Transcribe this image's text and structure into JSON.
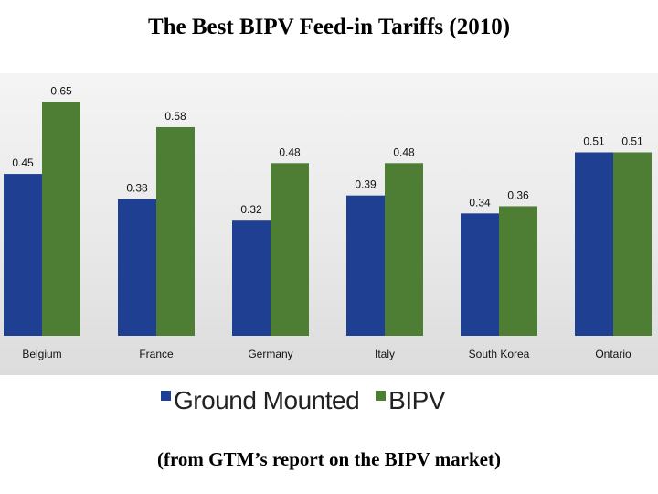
{
  "chart_data": {
    "type": "bar",
    "title": "The Best BIPV Feed-in Tariffs (2010)",
    "note": "(from GTM’s report on the BIPV market)",
    "categories": [
      "Belgium",
      "France",
      "Germany",
      "Italy",
      "South Korea",
      "Ontario"
    ],
    "series": [
      {
        "name": "Ground Mounted",
        "color": "#1f3f93",
        "values": [
          0.45,
          0.38,
          0.32,
          0.39,
          0.34,
          0.51
        ],
        "labels": [
          "0.45",
          "0.38",
          "0.32",
          "0.39",
          "0.34",
          "0.51"
        ]
      },
      {
        "name": "BIPV",
        "color": "#4e7e34",
        "values": [
          0.65,
          0.58,
          0.48,
          0.48,
          0.36,
          0.51
        ],
        "labels": [
          "0.65",
          "0.58",
          "0.48",
          "0.48",
          "0.36",
          "0.51"
        ]
      }
    ],
    "ylim": [
      0,
      0.73
    ],
    "grid": false,
    "legend_position": "bottom"
  }
}
